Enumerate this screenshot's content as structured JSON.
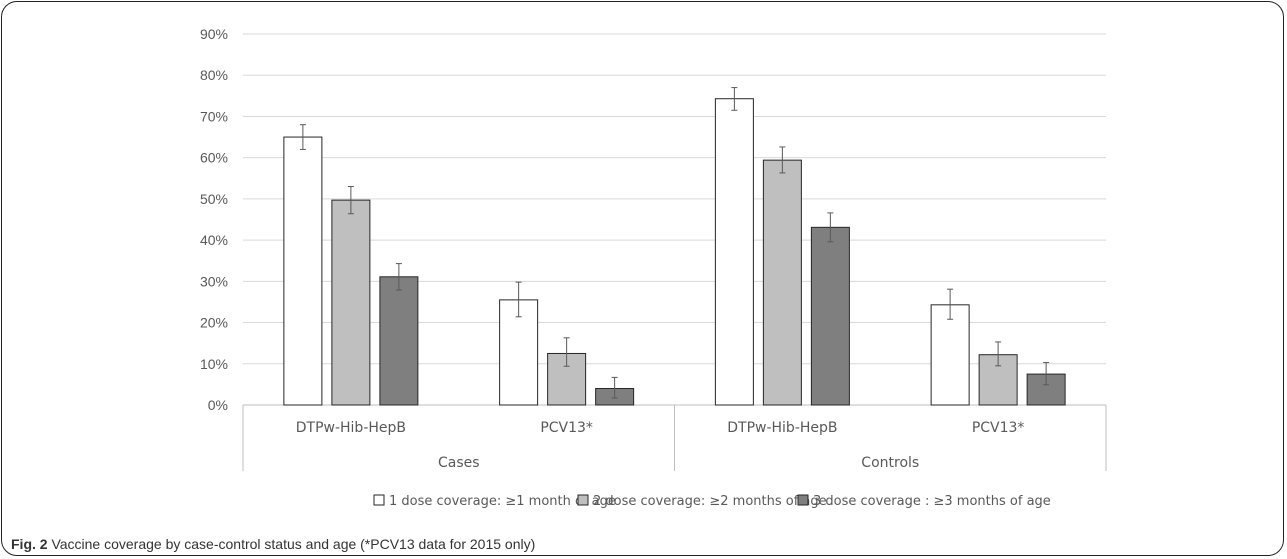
{
  "chart_data": {
    "type": "bar",
    "groups": [
      {
        "label": "Cases",
        "categories": [
          "DTPw-Hib-HepB",
          "PCV13*"
        ]
      },
      {
        "label": "Controls",
        "categories": [
          "DTPw-Hib-HepB",
          "PCV13*"
        ]
      }
    ],
    "categories": [
      "DTPw-Hib-HepB",
      "PCV13*",
      "DTPw-Hib-HepB",
      "PCV13*"
    ],
    "series": [
      {
        "name": "1 dose coverage: ≥1 month of age",
        "color": "#ffffff",
        "values": [
          65,
          25.5,
          74.3,
          24.3
        ],
        "error_low": [
          62,
          21.4,
          71.5,
          20.8
        ],
        "error_high": [
          68,
          29.8,
          77,
          28.1
        ]
      },
      {
        "name": "2 dose coverage: ≥2 months of age",
        "color": "#bfbfbf",
        "values": [
          49.7,
          12.5,
          59.4,
          12.2
        ],
        "error_low": [
          46.4,
          9.4,
          56.3,
          9.5
        ],
        "error_high": [
          53,
          16.3,
          62.6,
          15.3
        ]
      },
      {
        "name": "3 dose coverage : ≥3 months of age",
        "color": "#7f7f7f",
        "values": [
          31.1,
          4,
          43.1,
          7.5
        ],
        "error_low": [
          27.9,
          1.7,
          39.6,
          4.9
        ],
        "error_high": [
          34.3,
          6.7,
          46.6,
          10.3
        ]
      }
    ],
    "ylim": [
      0,
      90
    ],
    "yticks": [
      "0%",
      "10%",
      "20%",
      "30%",
      "40%",
      "50%",
      "60%",
      "70%",
      "80%",
      "90%"
    ],
    "grid": true,
    "legend_position": "bottom"
  },
  "caption": {
    "label": "Fig. 2",
    "text": " Vaccine coverage by case-control status and age (*PCV13 data for 2015 only)"
  }
}
